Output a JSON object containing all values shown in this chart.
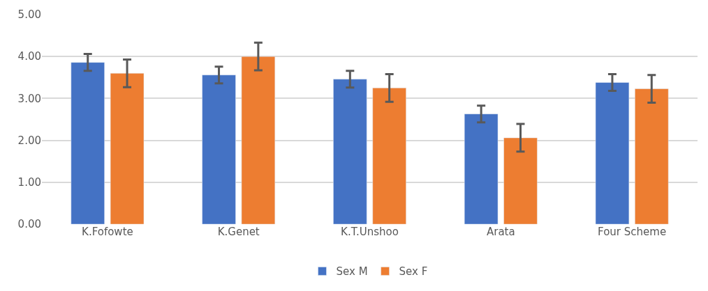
{
  "chart_data": {
    "type": "bar",
    "categories": [
      "K.Fofowte",
      "K.Genet",
      "K.T.Unshoo",
      "Arata",
      "Four Scheme"
    ],
    "series": [
      {
        "name": "Sex M",
        "color": "#4472c4",
        "values": [
          3.86,
          3.56,
          3.46,
          2.63,
          3.38
        ],
        "errors": [
          0.2,
          0.2,
          0.2,
          0.2,
          0.2
        ]
      },
      {
        "name": "Sex F",
        "color": "#ed7d31",
        "values": [
          3.6,
          4.0,
          3.25,
          2.06,
          3.23
        ],
        "errors": [
          0.33,
          0.33,
          0.33,
          0.33,
          0.33
        ]
      }
    ],
    "ylim": [
      0,
      5
    ],
    "yticks": [
      {
        "value": 0,
        "label": "0.00"
      },
      {
        "value": 1,
        "label": "1.00"
      },
      {
        "value": 2,
        "label": "2.00"
      },
      {
        "value": 3,
        "label": "3.00"
      },
      {
        "value": 4,
        "label": "4.00"
      },
      {
        "value": 5,
        "label": "5.00"
      }
    ],
    "grid": "y",
    "legend": "bottom"
  }
}
